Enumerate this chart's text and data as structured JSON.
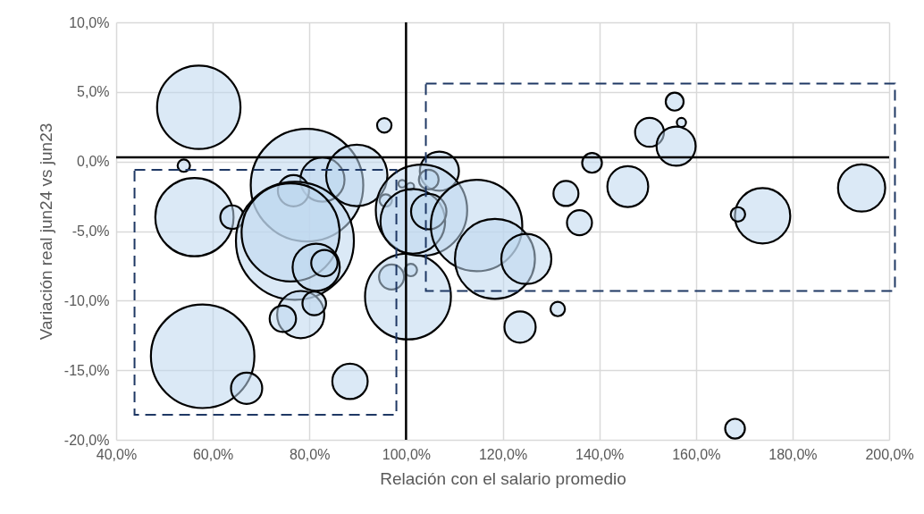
{
  "chart_data": {
    "type": "bubble",
    "xlabel": "Relación con el salario promedio",
    "ylabel": "Variación real jun24 vs jun23",
    "xlim": [
      40,
      200
    ],
    "ylim": [
      -20,
      10
    ],
    "xticks": [
      {
        "value": 40,
        "label": "40,0%"
      },
      {
        "value": 60,
        "label": "60,0%"
      },
      {
        "value": 80,
        "label": "80,0%"
      },
      {
        "value": 100,
        "label": "100,0%"
      },
      {
        "value": 120,
        "label": "120,0%"
      },
      {
        "value": 140,
        "label": "140,0%"
      },
      {
        "value": 160,
        "label": "160,0%"
      },
      {
        "value": 180,
        "label": "180,0%"
      },
      {
        "value": 200,
        "label": "200,0%"
      }
    ],
    "yticks": [
      {
        "value": -20,
        "label": "-20,0%"
      },
      {
        "value": -15,
        "label": "-15,0%"
      },
      {
        "value": -10,
        "label": "-10,0%"
      },
      {
        "value": -5,
        "label": "-5,0%"
      },
      {
        "value": 0,
        "label": "0,0%"
      },
      {
        "value": 5,
        "label": "5,0%"
      },
      {
        "value": 10,
        "label": "10,0%"
      }
    ],
    "grid": true,
    "ref_lines": [
      {
        "axis": "x",
        "value": 100,
        "color": "#000000"
      },
      {
        "axis": "y",
        "value": 0.3,
        "color": "#000000"
      }
    ],
    "series": [
      {
        "color": "#bdd7ee",
        "x": [
          57.1,
          54.0,
          56.2,
          64.0,
          79.5,
          82.7,
          89.8,
          76.7,
          95.5,
          77.0,
          76.1,
          81.4,
          83.1,
          78.2,
          74.5,
          81.0,
          57.9,
          67.0,
          88.4,
          97.0,
          101.0,
          100.4,
          106.9,
          104.7,
          99.2,
          100.9,
          95.8,
          103.2,
          101.4,
          104.7,
          114.6,
          118.4,
          124.9,
          123.6,
          131.4,
          133.1,
          135.9,
          138.5,
          145.9,
          150.4,
          155.6,
          157.0,
          155.9,
          173.8,
          168.7,
          194.3,
          168.1
        ],
        "values": [
          3.9,
          -0.3,
          -4.0,
          -4.0,
          -1.7,
          -1.3,
          -1.0,
          -2.1,
          2.6,
          -5.7,
          -5.1,
          -7.6,
          -7.3,
          -11.0,
          -11.3,
          -10.2,
          -14.0,
          -16.3,
          -15.8,
          -8.3,
          -7.8,
          -9.7,
          -0.7,
          -1.3,
          -1.6,
          -1.8,
          -2.8,
          -3.5,
          -4.3,
          -3.6,
          -4.6,
          -7.0,
          -7.0,
          -11.9,
          -10.6,
          -2.3,
          -4.4,
          -0.1,
          -1.8,
          2.1,
          4.3,
          2.8,
          1.1,
          -3.9,
          -3.8,
          -1.9,
          -19.2
        ],
        "sizes": [
          0.5,
          0.011,
          0.44,
          0.04,
          0.91,
          0.14,
          0.27,
          0.07,
          0.015,
          1,
          0.69,
          0.16,
          0.05,
          0.16,
          0.05,
          0.04,
          0.77,
          0.07,
          0.09,
          0.045,
          0.011,
          0.53,
          0.11,
          0.028,
          0.004,
          0.004,
          0.011,
          0.6,
          0.3,
          0.09,
          0.6,
          0.46,
          0.18,
          0.07,
          0.015,
          0.045,
          0.045,
          0.028,
          0.12,
          0.06,
          0.023,
          0.006,
          0.11,
          0.22,
          0.015,
          0.16,
          0.028
        ]
      }
    ]
  }
}
